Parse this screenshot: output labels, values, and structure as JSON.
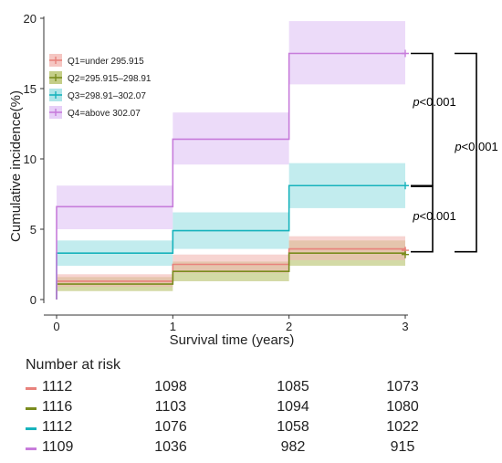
{
  "chart_data": {
    "type": "line",
    "step": true,
    "xlabel": "Survival time (years)",
    "ylabel": "Cumulative incidence(%)",
    "x_ticks": [
      0,
      1,
      2,
      3
    ],
    "y_ticks": [
      0,
      5,
      10,
      15,
      20
    ],
    "xlim": [
      0,
      3
    ],
    "ylim": [
      0,
      20
    ],
    "grid": false,
    "legend_position": "top-left",
    "series": [
      {
        "name": "Q1=under 295.915",
        "color": "#E8827C",
        "band_color": "#F2B8B3",
        "x": [
          0,
          1,
          2,
          3
        ],
        "y": [
          1.3,
          2.5,
          3.6,
          3.5
        ],
        "ci_low": [
          0.9,
          1.9,
          2.8,
          2.7
        ],
        "ci_high": [
          1.8,
          3.2,
          4.5,
          4.4
        ]
      },
      {
        "name": "Q2=295.915–298.91",
        "color": "#7A8C1E",
        "band_color": "#B5C26A",
        "x": [
          0,
          1,
          2,
          3
        ],
        "y": [
          1.1,
          2.0,
          3.3,
          3.2
        ],
        "ci_low": [
          0.6,
          1.3,
          2.4,
          2.3
        ],
        "ci_high": [
          1.6,
          2.7,
          4.2,
          4.1
        ]
      },
      {
        "name": "Q3=298.91–302.07",
        "color": "#17B3BC",
        "band_color": "#9ADFE2",
        "x": [
          0,
          1,
          2,
          3
        ],
        "y": [
          3.3,
          4.9,
          8.1,
          8.1
        ],
        "ci_low": [
          2.4,
          3.6,
          6.5,
          6.5
        ],
        "ci_high": [
          4.2,
          6.2,
          9.7,
          9.7
        ]
      },
      {
        "name": "Q4=above 302.07",
        "color": "#C77CDB",
        "band_color": "#E0C3F5",
        "x": [
          0,
          1,
          2,
          3
        ],
        "y": [
          6.6,
          11.4,
          17.5,
          17.5
        ],
        "ci_low": [
          5.0,
          9.6,
          15.3,
          15.3
        ],
        "ci_high": [
          8.1,
          13.3,
          19.8,
          19.8
        ]
      }
    ],
    "annotations": [
      {
        "text_prefix": "p",
        "text_suffix": "<0.001",
        "between": [
          "Q4",
          "Q3"
        ]
      },
      {
        "text_prefix": "p",
        "text_suffix": "<0.001",
        "between": [
          "Q3",
          "Q1"
        ]
      },
      {
        "text_prefix": "p",
        "text_suffix": "<0.001",
        "between": [
          "Q4",
          "Q1"
        ]
      }
    ]
  },
  "risk_table": {
    "title": "Number at risk",
    "rows": [
      {
        "color": "#E8827C",
        "values": [
          "1112",
          "1098",
          "1085",
          "1073"
        ]
      },
      {
        "color": "#7A8C1E",
        "values": [
          "1116",
          "1103",
          "1094",
          "1080"
        ]
      },
      {
        "color": "#17B3BC",
        "values": [
          "1112",
          "1076",
          "1058",
          "1022"
        ]
      },
      {
        "color": "#C77CDB",
        "values": [
          "1109",
          "1036",
          "982",
          "915"
        ]
      }
    ]
  }
}
